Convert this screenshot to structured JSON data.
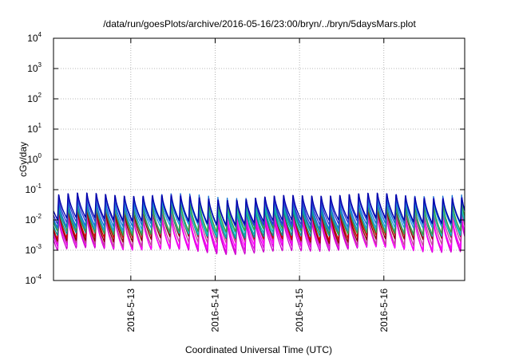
{
  "chart_data": {
    "type": "line",
    "title": "/data/run/goesPlots/archive/2016-05-16/23:00/bryn/../bryn/5daysMars.plot",
    "xlabel": "Coordinated Universal Time (UTC)",
    "ylabel": "cGy/day",
    "y_scale": "log",
    "ylim": [
      0.0001,
      10000
    ],
    "xlim": [
      "2016-05-12T02:00",
      "2016-05-16T23:00"
    ],
    "grid": true,
    "legend": "none",
    "y_ticks": [
      {
        "value": 0.0001,
        "base": "10",
        "exp": "-4"
      },
      {
        "value": 0.001,
        "base": "10",
        "exp": "-3"
      },
      {
        "value": 0.01,
        "base": "10",
        "exp": "-2"
      },
      {
        "value": 0.1,
        "base": "10",
        "exp": "-1"
      },
      {
        "value": 1,
        "base": "10",
        "exp": "0"
      },
      {
        "value": 10,
        "base": "10",
        "exp": "1"
      },
      {
        "value": 100,
        "base": "10",
        "exp": "2"
      },
      {
        "value": 1000,
        "base": "10",
        "exp": "3"
      },
      {
        "value": 10000,
        "base": "10",
        "exp": "4"
      }
    ],
    "x_ticks": [
      {
        "value": "2016-05-13T00:00",
        "label": "2016-5-13"
      },
      {
        "value": "2016-05-14T00:00",
        "label": "2016-5-14"
      },
      {
        "value": "2016-05-15T00:00",
        "label": "2016-5-15"
      },
      {
        "value": "2016-05-16T00:00",
        "label": "2016-5-16"
      }
    ],
    "series_pattern": {
      "shape": "sawtooth",
      "cycles_per_day": 9,
      "description_values": "peaks rise sharply then decay each cycle"
    },
    "series": [
      {
        "color": "#cc00cc",
        "peak": 0.012,
        "trough": 0.0009
      },
      {
        "color": "#e000e0",
        "peak": 0.015,
        "trough": 0.0011
      },
      {
        "color": "#ff00ff",
        "peak": 0.018,
        "trough": 0.0013
      },
      {
        "color": "#c0409a",
        "peak": 0.022,
        "trough": 0.0016
      },
      {
        "color": "#8b0000",
        "peak": 0.03,
        "trough": 0.0022
      },
      {
        "color": "#cc0000",
        "peak": 0.035,
        "trough": 0.0026
      },
      {
        "color": "#009090",
        "peak": 0.028,
        "trough": 0.003
      },
      {
        "color": "#00b0b0",
        "peak": 0.032,
        "trough": 0.0035
      },
      {
        "color": "#20c0c0",
        "peak": 0.038,
        "trough": 0.004
      },
      {
        "color": "#3a9a3a",
        "peak": 0.042,
        "trough": 0.0038
      },
      {
        "color": "#2090e0",
        "peak": 0.05,
        "trough": 0.0055
      },
      {
        "color": "#1070d0",
        "peak": 0.058,
        "trough": 0.0065
      },
      {
        "color": "#3030d0",
        "peak": 0.065,
        "trough": 0.0075
      },
      {
        "color": "#0000aa",
        "peak": 0.075,
        "trough": 0.009
      }
    ]
  }
}
